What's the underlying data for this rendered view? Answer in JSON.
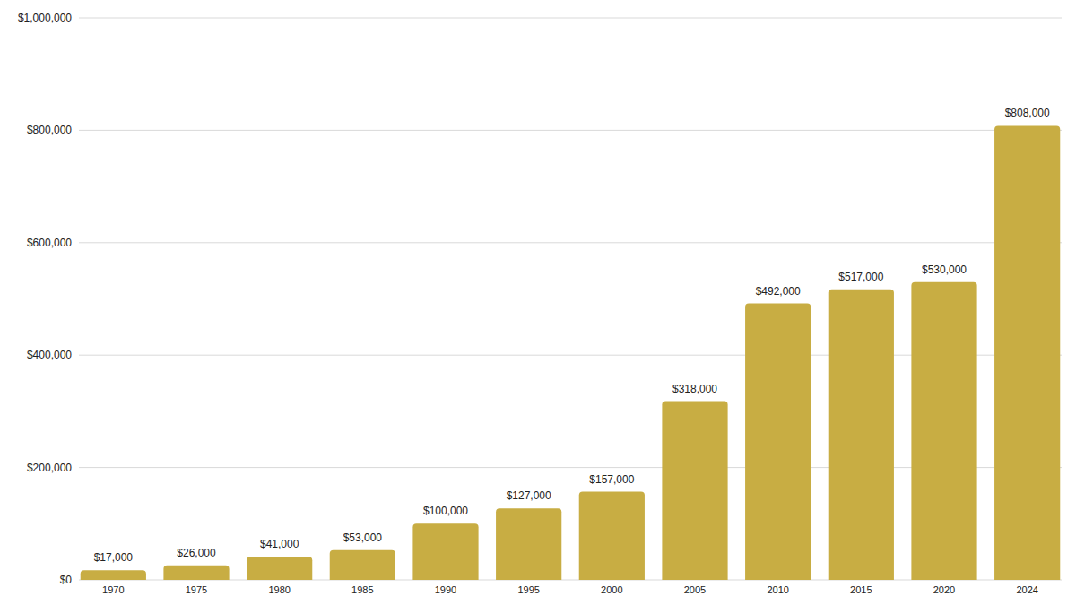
{
  "chart_data": {
    "type": "bar",
    "categories": [
      "1970",
      "1975",
      "1980",
      "1985",
      "1990",
      "1995",
      "2000",
      "2005",
      "2010",
      "2015",
      "2020",
      "2024"
    ],
    "values": [
      17000,
      26000,
      41000,
      53000,
      100000,
      127000,
      157000,
      318000,
      492000,
      517000,
      530000,
      808000
    ],
    "value_labels": [
      "$17,000",
      "$26,000",
      "$41,000",
      "$53,000",
      "$100,000",
      "$127,000",
      "$157,000",
      "$318,000",
      "$492,000",
      "$517,000",
      "$530,000",
      "$808,000"
    ],
    "color": "#c8ad43",
    "ylim": [
      0,
      1000000
    ],
    "yticks": [
      {
        "value": 0,
        "label": "$0"
      },
      {
        "value": 200000,
        "label": "$200,000"
      },
      {
        "value": 400000,
        "label": "$400,000"
      },
      {
        "value": 600000,
        "label": "$600,000"
      },
      {
        "value": 800000,
        "label": "$800,000"
      },
      {
        "value": 1000000,
        "label": "$1,000,000"
      }
    ],
    "grid": true,
    "data_labels": true
  }
}
